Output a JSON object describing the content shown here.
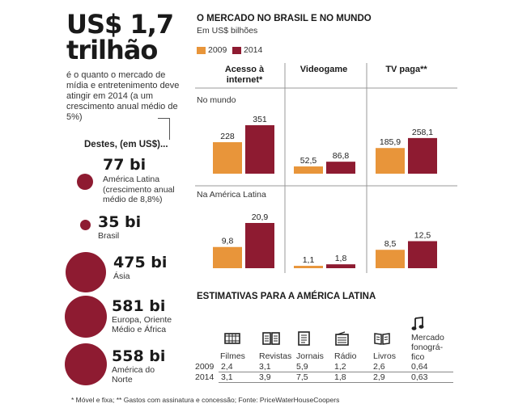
{
  "headline": {
    "line1": "US$ 1,7",
    "line2": "trilhão"
  },
  "intro": "é o quanto o mercado de mídia e entretenimento deve atingir em 2014 (a um crescimento anual médio de 5%)",
  "destes_label": "Destes, (em US$)...",
  "regions": [
    {
      "value_label": "77 bi",
      "value": 77,
      "name": "América Latina",
      "note": "(crescimento anual médio de 8,8%)"
    },
    {
      "value_label": "35 bi",
      "value": 35,
      "name": "Brasil",
      "note": ""
    },
    {
      "value_label": "475 bi",
      "value": 475,
      "name": "Ásia",
      "note": ""
    },
    {
      "value_label": "581 bi",
      "value": 581,
      "name": "Europa, Oriente Médio e África",
      "note": ""
    },
    {
      "value_label": "558 bi",
      "value": 558,
      "name": "América do Norte",
      "note": ""
    }
  ],
  "colors": {
    "y2009": "#e8953a",
    "y2014": "#8e1b31",
    "circle": "#8e1b31",
    "divider": "#999999"
  },
  "chart_data": [
    {
      "type": "bar",
      "title": "O MERCADO NO BRASIL E NO MUNDO",
      "subtitle": "Em US$ bilhões",
      "legend": [
        "2009",
        "2014"
      ],
      "categories": [
        "Acesso à internet*",
        "Videogame",
        "TV paga**"
      ],
      "panels": [
        {
          "label": "No mundo",
          "series": [
            {
              "name": "2009",
              "values": [
                228,
                52.5,
                185.9
              ],
              "labels": [
                "228",
                "52,5",
                "185,9"
              ]
            },
            {
              "name": "2014",
              "values": [
                351,
                86.8,
                258.1
              ],
              "labels": [
                "351",
                "86,8",
                "258,1"
              ]
            }
          ],
          "ylim": [
            0,
            351
          ]
        },
        {
          "label": "Na América Latina",
          "series": [
            {
              "name": "2009",
              "values": [
                9.8,
                1.1,
                8.5
              ],
              "labels": [
                "9,8",
                "1,1",
                "8,5"
              ]
            },
            {
              "name": "2014",
              "values": [
                20.9,
                1.8,
                12.5
              ],
              "labels": [
                "20,9",
                "1,8",
                "12,5"
              ]
            }
          ],
          "ylim": [
            0,
            20.9
          ]
        }
      ]
    },
    {
      "type": "table",
      "title": "ESTIMATIVAS PARA A AMÉRICA LATINA",
      "columns": [
        {
          "name": "Filmes",
          "icon": "film-icon"
        },
        {
          "name": "Revistas",
          "icon": "magazine-icon"
        },
        {
          "name": "Jornais",
          "icon": "newspaper-icon"
        },
        {
          "name": "Rádio",
          "icon": "radio-icon"
        },
        {
          "name": "Livros",
          "icon": "book-icon"
        },
        {
          "name": "Mercado fonográ-fico",
          "icon": "music-note-icon"
        }
      ],
      "rows": [
        {
          "label": "2009",
          "values": [
            "2,4",
            "3,1",
            "5,9",
            "1,2",
            "2,6",
            "0,64"
          ]
        },
        {
          "label": "2014",
          "values": [
            "3,1",
            "3,9",
            "7,5",
            "1,8",
            "2,9",
            "0,63"
          ]
        }
      ]
    }
  ],
  "footnote": "* Móvel e fixa; ** Gastos com assinatura e concessão; Fonte: PriceWaterHouseCoopers"
}
